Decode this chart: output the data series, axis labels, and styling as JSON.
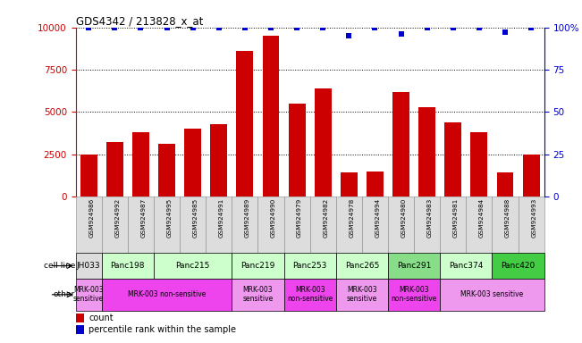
{
  "title": "GDS4342 / 213828_x_at",
  "samples": [
    "GSM924986",
    "GSM924992",
    "GSM924987",
    "GSM924995",
    "GSM924985",
    "GSM924991",
    "GSM924989",
    "GSM924990",
    "GSM924979",
    "GSM924982",
    "GSM924978",
    "GSM924994",
    "GSM924980",
    "GSM924983",
    "GSM924981",
    "GSM924984",
    "GSM924988",
    "GSM924993"
  ],
  "counts": [
    2500,
    3200,
    3800,
    3100,
    4000,
    4300,
    8600,
    9500,
    5500,
    6400,
    1400,
    1500,
    6200,
    5300,
    4400,
    3800,
    1400,
    2500
  ],
  "percentile_ranks": [
    100,
    100,
    100,
    100,
    100,
    100,
    100,
    100,
    100,
    100,
    95,
    100,
    96,
    100,
    100,
    100,
    97,
    100
  ],
  "bar_color": "#cc0000",
  "dot_color": "#0000cc",
  "dot_marker": "s",
  "dot_size": 18,
  "ylim_left": [
    0,
    10000
  ],
  "ylim_right": [
    0,
    100
  ],
  "yticks_left": [
    0,
    2500,
    5000,
    7500,
    10000
  ],
  "yticks_right": [
    0,
    25,
    50,
    75,
    100
  ],
  "axis_left_color": "#cc0000",
  "axis_right_color": "#0000cc",
  "grid_color": "#000000",
  "cell_line_data": [
    {
      "name": "JH033",
      "indices": [
        0
      ],
      "color": "#dddddd"
    },
    {
      "name": "Panc198",
      "indices": [
        1,
        2
      ],
      "color": "#ccffcc"
    },
    {
      "name": "Panc215",
      "indices": [
        3,
        4,
        5
      ],
      "color": "#ccffcc"
    },
    {
      "name": "Panc219",
      "indices": [
        6,
        7
      ],
      "color": "#ccffcc"
    },
    {
      "name": "Panc253",
      "indices": [
        8,
        9
      ],
      "color": "#ccffcc"
    },
    {
      "name": "Panc265",
      "indices": [
        10,
        11
      ],
      "color": "#ccffcc"
    },
    {
      "name": "Panc291",
      "indices": [
        12,
        13
      ],
      "color": "#88dd88"
    },
    {
      "name": "Panc374",
      "indices": [
        14,
        15
      ],
      "color": "#ccffcc"
    },
    {
      "name": "Panc420",
      "indices": [
        16,
        17
      ],
      "color": "#44cc44"
    }
  ],
  "other_data": [
    {
      "label": "MRK-003\nsensitive",
      "start": 0,
      "end": 1,
      "color": "#ee99ee"
    },
    {
      "label": "MRK-003 non-sensitive",
      "start": 1,
      "end": 6,
      "color": "#ee44ee"
    },
    {
      "label": "MRK-003\nsensitive",
      "start": 6,
      "end": 8,
      "color": "#ee99ee"
    },
    {
      "label": "MRK-003\nnon-sensitive",
      "start": 8,
      "end": 10,
      "color": "#ee44ee"
    },
    {
      "label": "MRK-003\nsensitive",
      "start": 10,
      "end": 12,
      "color": "#ee99ee"
    },
    {
      "label": "MRK-003\nnon-sensitive",
      "start": 12,
      "end": 14,
      "color": "#ee44ee"
    },
    {
      "label": "MRK-003 sensitive",
      "start": 14,
      "end": 18,
      "color": "#ee99ee"
    }
  ],
  "sample_row_color": "#dddddd",
  "legend_count_color": "#cc0000",
  "legend_rank_color": "#0000cc"
}
